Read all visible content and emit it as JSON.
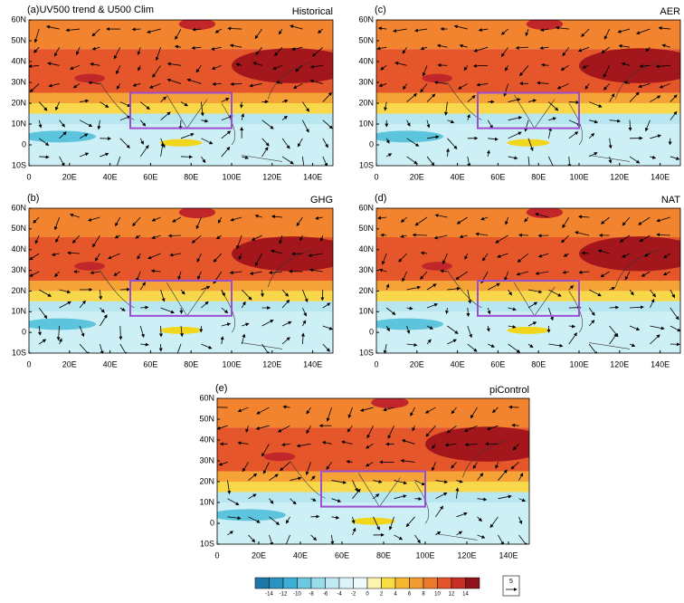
{
  "panels": [
    {
      "label": "(a)UV500 trend & U500 Clim",
      "title": "Historical"
    },
    {
      "label": "(c)",
      "title": "AER"
    },
    {
      "label": "(b)",
      "title": "GHG"
    },
    {
      "label": "(d)",
      "title": "NAT"
    },
    {
      "label": "(e)",
      "title": "piControl"
    }
  ],
  "lat_labels": [
    "60N",
    "50N",
    "40N",
    "30N",
    "20N",
    "10N",
    "0",
    "10S"
  ],
  "lon_labels": [
    "0",
    "20E",
    "40E",
    "60E",
    "80E",
    "100E",
    "120E",
    "140E"
  ],
  "colorbar": {
    "labels": [
      "-14",
      "-12",
      "-10",
      "-8",
      "-6",
      "-4",
      "-2",
      "0",
      "2",
      "4",
      "6",
      "8",
      "10",
      "12",
      "14"
    ]
  },
  "reference_vector": "5"
}
